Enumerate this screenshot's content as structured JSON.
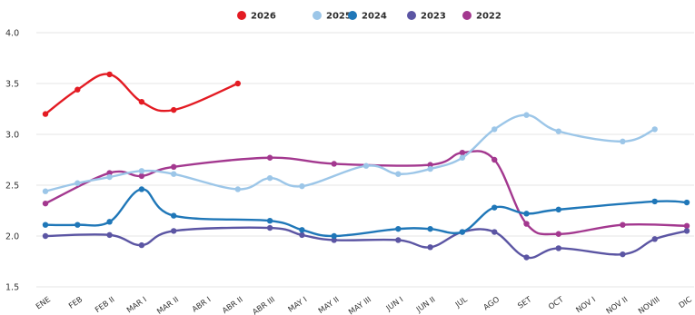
{
  "chart_data": {
    "type": "line",
    "title": "",
    "xlabel": "",
    "ylabel": "",
    "ylim": [
      1.5,
      4.0
    ],
    "yticks": [
      "1.5",
      "2.0",
      "2.5",
      "3.0",
      "3.5",
      "4.0"
    ],
    "grid": true,
    "legend_position": "top-center",
    "categories": [
      "ENE",
      "FEB",
      "FEB II",
      "MAR I",
      "MAR II",
      "ABR I",
      "ABR II",
      "ABR III",
      "MAY I",
      "MAY II",
      "MAY III",
      "JUN I",
      "JUN II",
      "JUL",
      "AGO",
      "SET",
      "OCT",
      "NOV I",
      "NOV II",
      "NOVIII",
      "DIC"
    ],
    "series": [
      {
        "name": "2026",
        "color": "#e31b23",
        "values": [
          3.2,
          3.44,
          3.59,
          3.32,
          3.24,
          null,
          3.5,
          null,
          null,
          null,
          null,
          null,
          null,
          null,
          null,
          null,
          null,
          null,
          null,
          null,
          null
        ]
      },
      {
        "name": "2025",
        "color": "#9cc6e8",
        "values": [
          2.44,
          2.52,
          2.58,
          2.64,
          2.61,
          null,
          2.46,
          2.57,
          2.49,
          null,
          2.69,
          2.61,
          2.66,
          2.77,
          3.05,
          3.19,
          3.03,
          null,
          2.93,
          3.05,
          null
        ]
      },
      {
        "name": "2024",
        "color": "#1f77b8",
        "values": [
          2.11,
          2.11,
          2.14,
          2.46,
          2.2,
          null,
          null,
          2.15,
          2.06,
          2.0,
          null,
          2.07,
          2.07,
          2.04,
          2.28,
          2.22,
          2.26,
          null,
          null,
          2.34,
          2.33
        ]
      },
      {
        "name": "2023",
        "color": "#5b55a3",
        "values": [
          2.0,
          null,
          2.01,
          1.91,
          2.05,
          null,
          null,
          2.08,
          2.01,
          1.96,
          null,
          1.96,
          1.89,
          2.04,
          2.04,
          1.79,
          1.88,
          null,
          1.82,
          1.97,
          2.05
        ]
      },
      {
        "name": "2022",
        "color": "#a3388f",
        "values": [
          2.32,
          null,
          2.62,
          2.59,
          2.68,
          null,
          null,
          2.77,
          null,
          2.71,
          null,
          null,
          2.7,
          2.82,
          2.75,
          2.12,
          2.02,
          null,
          2.11,
          null,
          2.1
        ]
      }
    ]
  }
}
